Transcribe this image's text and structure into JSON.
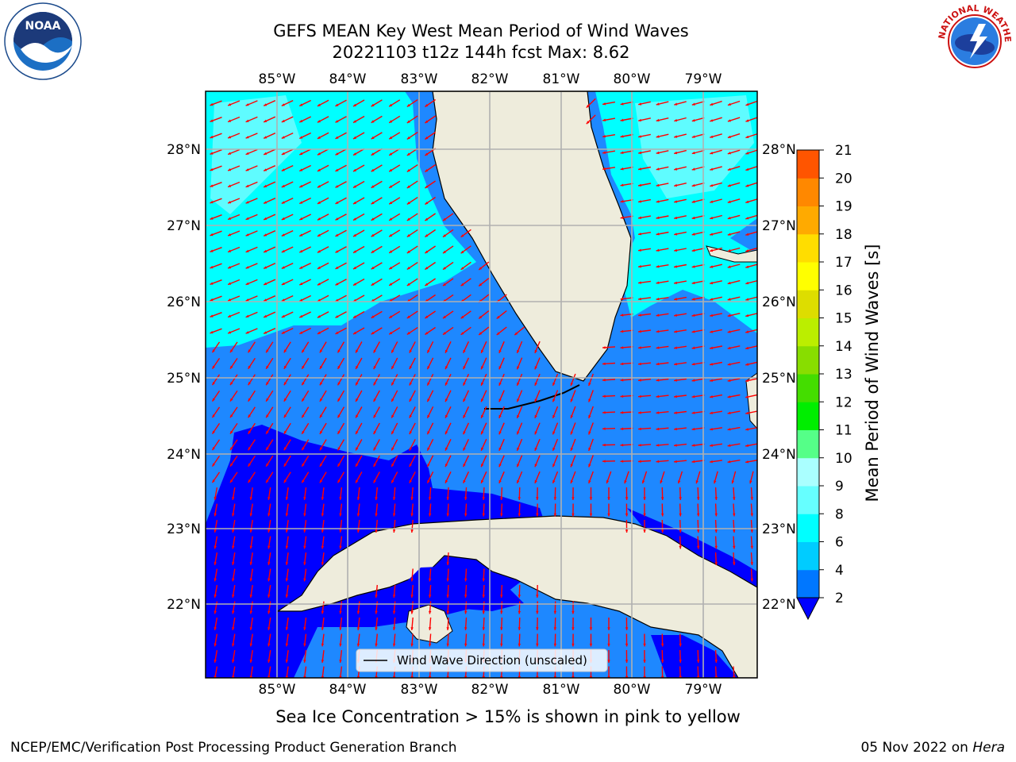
{
  "header": {
    "title_line1": "GEFS MEAN Key West Mean Period of Wind Waves",
    "title_line2": "20221103 t12z 144h fcst   Max: 8.62"
  },
  "map": {
    "lon_labels": [
      "85°W",
      "84°W",
      "83°W",
      "82°W",
      "81°W",
      "80°W",
      "79°W"
    ],
    "lat_labels": [
      "28°N",
      "27°N",
      "26°N",
      "25°N",
      "24°N",
      "23°N",
      "22°N"
    ],
    "legend_label": "Wind Wave Direction (unscaled)",
    "arrow_color": "#ff0000",
    "land_color": "#eeecdc"
  },
  "colorbar": {
    "label": "Mean Period of Wind Waves [s]",
    "ticks": [
      "2",
      "4",
      "6",
      "8",
      "9",
      "10",
      "11",
      "12",
      "13",
      "14",
      "15",
      "16",
      "17",
      "18",
      "19",
      "20",
      "21"
    ],
    "colors": [
      "#0077ff",
      "#00ccff",
      "#00ffff",
      "#66ffff",
      "#aaffff",
      "#55ff88",
      "#00ee00",
      "#44dd00",
      "#88dd00",
      "#bbee00",
      "#dddd00",
      "#ffff00",
      "#ffdd00",
      "#ffaa00",
      "#ff8800",
      "#ff5500",
      "#ff2200",
      "#ff0000"
    ],
    "under_color": "#0000ff"
  },
  "notice": "Sea Ice Concentration > 15% is shown in pink to yellow",
  "footer": {
    "left": "NCEP/EMC/Verification Post Processing Product Generation Branch",
    "date": "05 Nov 2022 on ",
    "host": "Hera"
  },
  "logos": {
    "noaa": "NOAA",
    "nws_ring": "NATIONAL WEATHER SERVICE"
  }
}
